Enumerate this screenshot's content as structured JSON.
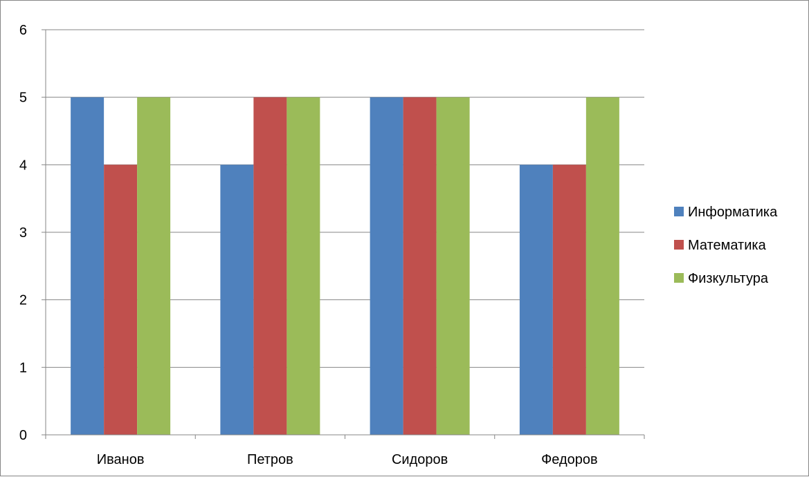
{
  "chart_data": {
    "type": "bar",
    "title": "",
    "xlabel": "",
    "ylabel": "",
    "categories": [
      "Иванов",
      "Петров",
      "Сидоров",
      "Федоров"
    ],
    "series": [
      {
        "name": "Информатика",
        "values": [
          5,
          4,
          5,
          4
        ],
        "color": "#4F81BD"
      },
      {
        "name": "Математика",
        "values": [
          4,
          5,
          5,
          4
        ],
        "color": "#C0504D"
      },
      {
        "name": "Физкультура",
        "values": [
          5,
          5,
          5,
          5
        ],
        "color": "#9BBB59"
      }
    ],
    "ylim": [
      0,
      6
    ],
    "yticks": [
      0,
      1,
      2,
      3,
      4,
      5,
      6
    ],
    "grid": true,
    "legend_position": "right",
    "gridline_color": "#868686"
  }
}
